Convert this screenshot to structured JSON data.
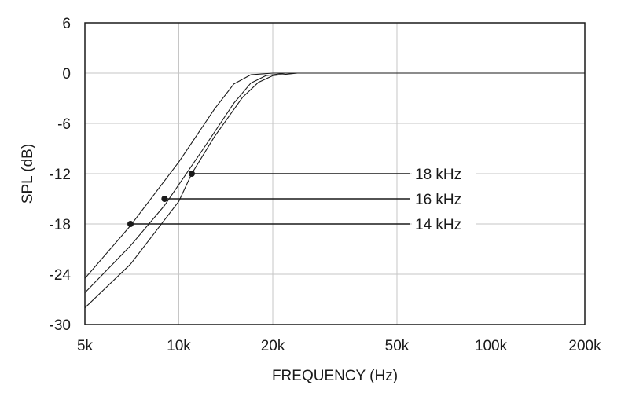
{
  "chart_data": {
    "type": "line",
    "title": "",
    "xlabel": "FREQUENCY (Hz)",
    "ylabel": "SPL (dB)",
    "x_scale": "log",
    "xlim": [
      5000,
      200000
    ],
    "ylim": [
      -30,
      6
    ],
    "x_ticks": [
      {
        "value": 5000,
        "label": "5k"
      },
      {
        "value": 10000,
        "label": "10k"
      },
      {
        "value": 20000,
        "label": "20k"
      },
      {
        "value": 50000,
        "label": "50k"
      },
      {
        "value": 100000,
        "label": "100k"
      },
      {
        "value": 200000,
        "label": "200k"
      }
    ],
    "y_ticks": [
      {
        "value": 6,
        "label": "6"
      },
      {
        "value": 0,
        "label": "0"
      },
      {
        "value": -6,
        "label": "-6"
      },
      {
        "value": -12,
        "label": "-12"
      },
      {
        "value": -18,
        "label": "-18"
      },
      {
        "value": -24,
        "label": "-24"
      },
      {
        "value": -30,
        "label": "-30"
      }
    ],
    "grid": true,
    "series": [
      {
        "x": [
          5000,
          7000,
          10000,
          13000,
          15000,
          17000,
          20000,
          50000,
          200000
        ],
        "y": [
          -24.5,
          -18.2,
          -10.6,
          -4.3,
          -1.3,
          -0.2,
          0,
          0,
          0
        ]
      },
      {
        "x": [
          5000,
          7000,
          9000,
          12000,
          15000,
          17000,
          19000,
          22000,
          50000,
          200000
        ],
        "y": [
          -26.2,
          -20.6,
          -15.8,
          -9.0,
          -3.6,
          -1.2,
          -0.3,
          0,
          0,
          0
        ]
      },
      {
        "x": [
          5000,
          7000,
          10000,
          11000,
          13000,
          16000,
          18000,
          20000,
          24000,
          50000,
          200000
        ],
        "y": [
          -28.0,
          -22.8,
          -15.3,
          -12.0,
          -7.6,
          -2.9,
          -1.1,
          -0.3,
          0,
          0,
          0
        ]
      }
    ],
    "callouts": [
      {
        "label": "18 kHz",
        "x": 11000,
        "y": -12
      },
      {
        "label": "16 kHz",
        "x": 9000,
        "y": -15
      },
      {
        "label": "14 kHz",
        "x": 7000,
        "y": -18
      }
    ]
  }
}
